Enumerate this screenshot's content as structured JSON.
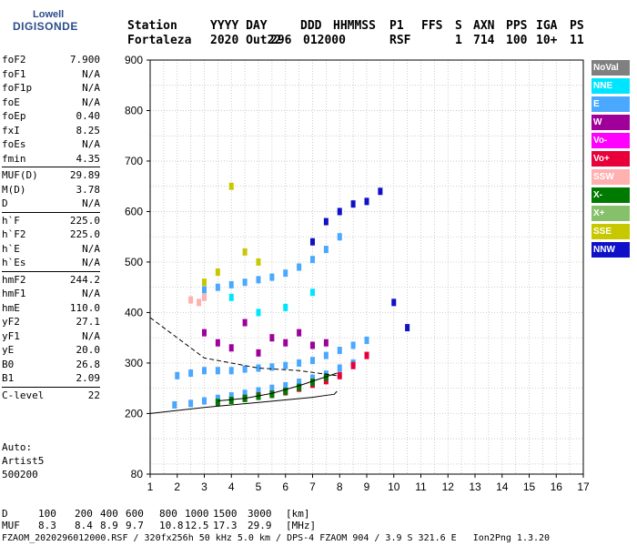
{
  "logo": {
    "line1": "Lowell",
    "line2": "DIGISONDE"
  },
  "header": {
    "labels": [
      "Station",
      "YYYY DAY",
      "DDD",
      "HHMMSS",
      "P1",
      "FFS",
      "S",
      "AXN",
      "PPS",
      "IGA",
      "PS"
    ],
    "values": [
      "Fortaleza",
      "2020 Out22",
      "296",
      "012000",
      "RSF",
      "",
      "1",
      "714",
      "100",
      "10+",
      "11"
    ]
  },
  "params": [
    {
      "name": "foF2",
      "value": "7.900"
    },
    {
      "name": "foF1",
      "value": "N/A"
    },
    {
      "name": "foF1p",
      "value": "N/A"
    },
    {
      "name": "foE",
      "value": "N/A"
    },
    {
      "name": "foEp",
      "value": "0.40"
    },
    {
      "name": "fxI",
      "value": "8.25"
    },
    {
      "name": "foEs",
      "value": "N/A"
    },
    {
      "name": "fmin",
      "value": "4.35"
    },
    {
      "sep": true
    },
    {
      "name": "MUF(D)",
      "value": "29.89"
    },
    {
      "name": "M(D)",
      "value": "3.78"
    },
    {
      "name": "D",
      "value": "N/A"
    },
    {
      "sep": true
    },
    {
      "name": "h`F",
      "value": "225.0"
    },
    {
      "name": "h`F2",
      "value": "225.0"
    },
    {
      "name": "h`E",
      "value": "N/A"
    },
    {
      "name": "h`Es",
      "value": "N/A"
    },
    {
      "sep": true
    },
    {
      "name": "hmF2",
      "value": "244.2"
    },
    {
      "name": "hmF1",
      "value": "N/A"
    },
    {
      "name": "hmE",
      "value": "110.0"
    },
    {
      "name": "yF2",
      "value": "27.1"
    },
    {
      "name": "yF1",
      "value": "N/A"
    },
    {
      "name": "yE",
      "value": "20.0"
    },
    {
      "name": "B0",
      "value": "26.8"
    },
    {
      "name": "B1",
      "value": "2.09"
    },
    {
      "sep": true
    },
    {
      "name": "C-level",
      "value": "22"
    }
  ],
  "auto": {
    "line1": "Auto:",
    "line2": "Artist5",
    "line3": "500200"
  },
  "legend": [
    {
      "label": "NoVal",
      "color": "#808080"
    },
    {
      "label": "NNE",
      "color": "#00e5ff"
    },
    {
      "label": "E",
      "color": "#4aa8ff"
    },
    {
      "label": "W",
      "color": "#a0009a"
    },
    {
      "label": "Vo-",
      "color": "#ff00ff"
    },
    {
      "label": "Vo+",
      "color": "#e8003a"
    },
    {
      "label": "SSW",
      "color": "#ffb0b0"
    },
    {
      "label": "X-",
      "color": "#007a00"
    },
    {
      "label": "X+",
      "color": "#86c06a"
    },
    {
      "label": "SSE",
      "color": "#c8c800"
    },
    {
      "label": "NNW",
      "color": "#1010c8"
    }
  ],
  "distance_row": {
    "label": "D",
    "values": [
      "100",
      "200",
      "400",
      "600",
      "800",
      "1000",
      "1500",
      "3000"
    ],
    "unit": "[km]"
  },
  "muf_row": {
    "label": "MUF",
    "values": [
      "8.3",
      "8.4",
      "8.9",
      "9.7",
      "10.8",
      "12.5",
      "17.3",
      "29.9"
    ],
    "unit": "[MHz]"
  },
  "footer": "FZAOM_2020296012000.RSF / 320fx256h 50 kHz 5.0 km / DPS-4 FZAOM 904 / 3.9 S 321.6 E   Ion2Png 1.3.20",
  "chart_data": {
    "type": "scatter",
    "title": "",
    "xlabel": "",
    "ylabel": "",
    "xlim": [
      1,
      17
    ],
    "ylim": [
      80,
      900
    ],
    "x_ticks": [
      1,
      2,
      3,
      4,
      5,
      6,
      7,
      8,
      9,
      10,
      11,
      12,
      13,
      14,
      15,
      16,
      17
    ],
    "y_ticks": [
      80,
      200,
      300,
      400,
      500,
      600,
      700,
      800,
      900
    ],
    "grid": true,
    "legend_position": "right",
    "series": [
      {
        "name": "E",
        "color": "#4aa8ff",
        "x": [
          1.9,
          2.5,
          3.0,
          3.5,
          4.0,
          4.5,
          5.0,
          5.5,
          6.0,
          6.5,
          7.0,
          7.5,
          8.0,
          8.5,
          9.0
        ],
        "y": [
          217,
          220,
          225,
          230,
          235,
          240,
          245,
          250,
          255,
          262,
          270,
          278,
          290,
          300,
          315
        ]
      },
      {
        "name": "E",
        "color": "#4aa8ff",
        "x": [
          2.0,
          2.5,
          3.0,
          3.5,
          4.0,
          4.5,
          5.0,
          5.5,
          6.0,
          6.5,
          7.0,
          7.5,
          8.0,
          8.5,
          9.0
        ],
        "y": [
          275,
          280,
          285,
          285,
          285,
          288,
          290,
          292,
          295,
          300,
          305,
          315,
          325,
          335,
          345
        ]
      },
      {
        "name": "E",
        "color": "#4aa8ff",
        "x": [
          3.0,
          3.5,
          4.0,
          4.5,
          5.0,
          5.5,
          6.0,
          6.5,
          7.0,
          7.5,
          8.0
        ],
        "y": [
          445,
          450,
          455,
          460,
          465,
          470,
          478,
          490,
          505,
          525,
          550
        ]
      },
      {
        "name": "Vo+",
        "color": "#e8003a",
        "x": [
          4.5,
          5.0,
          5.5,
          6.0,
          6.5,
          7.0,
          7.5,
          8.0,
          8.5,
          9.0
        ],
        "y": [
          230,
          235,
          238,
          243,
          250,
          258,
          265,
          275,
          295,
          315
        ]
      },
      {
        "name": "X-",
        "color": "#007a00",
        "x": [
          3.5,
          4.0,
          4.5,
          5.0,
          5.5,
          6.0,
          6.5,
          7.0,
          7.5
        ],
        "y": [
          222,
          226,
          230,
          234,
          238,
          244,
          252,
          262,
          272
        ]
      },
      {
        "name": "W",
        "color": "#a0009a",
        "x": [
          3.0,
          3.5,
          4.0,
          4.5,
          5.0,
          5.5,
          6.0,
          6.5,
          7.0,
          7.5
        ],
        "y": [
          360,
          340,
          330,
          380,
          320,
          350,
          340,
          360,
          335,
          340
        ]
      },
      {
        "name": "NNW",
        "color": "#1010c8",
        "x": [
          7.0,
          7.5,
          8.0,
          8.5,
          9.0,
          9.5,
          10.0,
          10.5
        ],
        "y": [
          540,
          580,
          600,
          615,
          620,
          640,
          420,
          370
        ]
      },
      {
        "name": "SSW",
        "color": "#ffb0b0",
        "x": [
          2.5,
          2.8,
          3.0
        ],
        "y": [
          425,
          420,
          430
        ]
      },
      {
        "name": "SSE",
        "color": "#c8c800",
        "x": [
          3.0,
          3.5,
          4.0,
          4.5,
          5.0
        ],
        "y": [
          460,
          480,
          650,
          520,
          500
        ]
      },
      {
        "name": "NNE",
        "color": "#00e5ff",
        "x": [
          4.0,
          5.0,
          6.0,
          7.0
        ],
        "y": [
          430,
          400,
          410,
          440
        ]
      }
    ],
    "curves": [
      {
        "name": "profile",
        "x": [
          1.0,
          3.0,
          5.0,
          7.0,
          7.5,
          7.8,
          7.9
        ],
        "y": [
          200,
          212,
          222,
          232,
          236,
          238,
          244
        ]
      },
      {
        "name": "fitted",
        "x": [
          3.5,
          4.5,
          5.5,
          6.5,
          7.9
        ],
        "y": [
          225,
          230,
          240,
          255,
          280
        ]
      },
      {
        "name": "dashed-profile",
        "x": [
          1.0,
          3.0,
          5.0,
          6.5,
          7.9
        ],
        "y": [
          390,
          310,
          290,
          285,
          275
        ]
      }
    ]
  }
}
